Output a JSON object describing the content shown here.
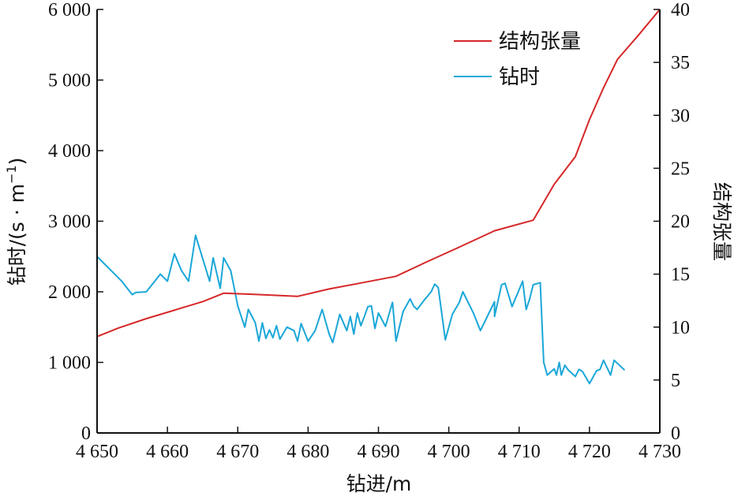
{
  "chart_data": {
    "type": "line",
    "xlabel": "钻进/m",
    "ylabel_left": "钻时/(s · m⁻¹)",
    "ylabel_left_base": "钻时/(s · m",
    "ylabel_left_sup": "−1",
    "ylabel_left_close": ")",
    "ylabel_right": "结构张量",
    "xlim": [
      4650,
      4730
    ],
    "ylim_left": [
      0,
      6000
    ],
    "ylim_right": [
      0,
      40
    ],
    "xticks": [
      4650,
      4660,
      4670,
      4680,
      4690,
      4700,
      4710,
      4720,
      4730
    ],
    "xtick_labels": [
      "4 650",
      "4 660",
      "4 670",
      "4 680",
      "4 690",
      "4 700",
      "4 710",
      "4 720",
      "4 730"
    ],
    "yticks_left": [
      0,
      1000,
      2000,
      3000,
      4000,
      5000,
      6000
    ],
    "ytick_labels_left": [
      "0",
      "1 000",
      "2 000",
      "3 000",
      "4 000",
      "5 000",
      "6 000"
    ],
    "yticks_right": [
      0,
      5,
      10,
      15,
      20,
      25,
      30,
      35,
      40
    ],
    "ytick_labels_right": [
      "0",
      "5",
      "10",
      "15",
      "20",
      "25",
      "30",
      "35",
      "40"
    ],
    "legend_position": "top-right",
    "grid": false,
    "series": [
      {
        "name": "结构张量",
        "axis": "right",
        "color": "#d62728",
        "x": [
          4650,
          4653,
          4657,
          4660,
          4662,
          4665,
          4668,
          4672,
          4678.5,
          4683,
          4687,
          4692.5,
          4697,
          4701,
          4706.5,
          4712,
          4715,
          4718,
          4720,
          4722,
          4724,
          4727,
          4730
        ],
        "y": [
          9.1,
          9.9,
          10.8,
          11.4,
          11.8,
          12.4,
          13.2,
          13.1,
          12.9,
          13.6,
          14.1,
          14.8,
          16.2,
          17.4,
          19.1,
          20.1,
          23.5,
          26.1,
          29.6,
          32.6,
          35.3,
          37.6,
          40.0
        ]
      },
      {
        "name": "钻时",
        "axis": "left",
        "color": "#1aa7d8",
        "x": [
          4650,
          4652.5,
          4653.5,
          4655,
          4655.5,
          4657,
          4659,
          4660,
          4661,
          4662,
          4663,
          4664,
          4666,
          4666.5,
          4667.5,
          4668,
          4669,
          4670,
          4670.5,
          4671,
          4671.5,
          4672.5,
          4673,
          4673.5,
          4674,
          4674.5,
          4675,
          4675.5,
          4676,
          4677,
          4678,
          4678.5,
          4679,
          4680,
          4681,
          4682,
          4683,
          4683.5,
          4684.5,
          4685.5,
          4686,
          4686.5,
          4687,
          4687.5,
          4688,
          4688.5,
          4689,
          4689.5,
          4690,
          4691,
          4692,
          4692.5,
          4693.5,
          4694.5,
          4695,
          4695.5,
          4696.5,
          4697.5,
          4698,
          4698.5,
          4699.5,
          4700.5,
          4701.5,
          4702,
          4703.5,
          4704.5,
          4706.5,
          4706.5,
          4707.5,
          4708,
          4709,
          4710.5,
          4711,
          4711.5,
          4712,
          4713,
          4713.5,
          4714,
          4715,
          4715.3,
          4715.7,
          4716,
          4716.5,
          4717,
          4718,
          4718.5,
          4719,
          4720,
          4721,
          4721.5,
          4722,
          4723,
          4723.5,
          4725
        ],
        "y": [
          2500,
          2250,
          2150,
          1960,
          1990,
          2000,
          2250,
          2150,
          2540,
          2300,
          2150,
          2800,
          2150,
          2480,
          2050,
          2480,
          2300,
          1800,
          1650,
          1500,
          1750,
          1560,
          1300,
          1560,
          1340,
          1460,
          1350,
          1520,
          1330,
          1500,
          1450,
          1300,
          1550,
          1300,
          1450,
          1750,
          1400,
          1280,
          1680,
          1450,
          1650,
          1400,
          1700,
          1520,
          1650,
          1790,
          1800,
          1480,
          1700,
          1510,
          1850,
          1300,
          1720,
          1900,
          1800,
          1750,
          1880,
          2000,
          2110,
          2060,
          1320,
          1680,
          1850,
          2000,
          1700,
          1450,
          1860,
          1650,
          2100,
          2120,
          1790,
          2150,
          1750,
          1900,
          2100,
          2130,
          1000,
          820,
          910,
          820,
          1000,
          820,
          960,
          890,
          800,
          900,
          870,
          700,
          880,
          900,
          1030,
          820,
          1030,
          890
        ]
      }
    ]
  }
}
